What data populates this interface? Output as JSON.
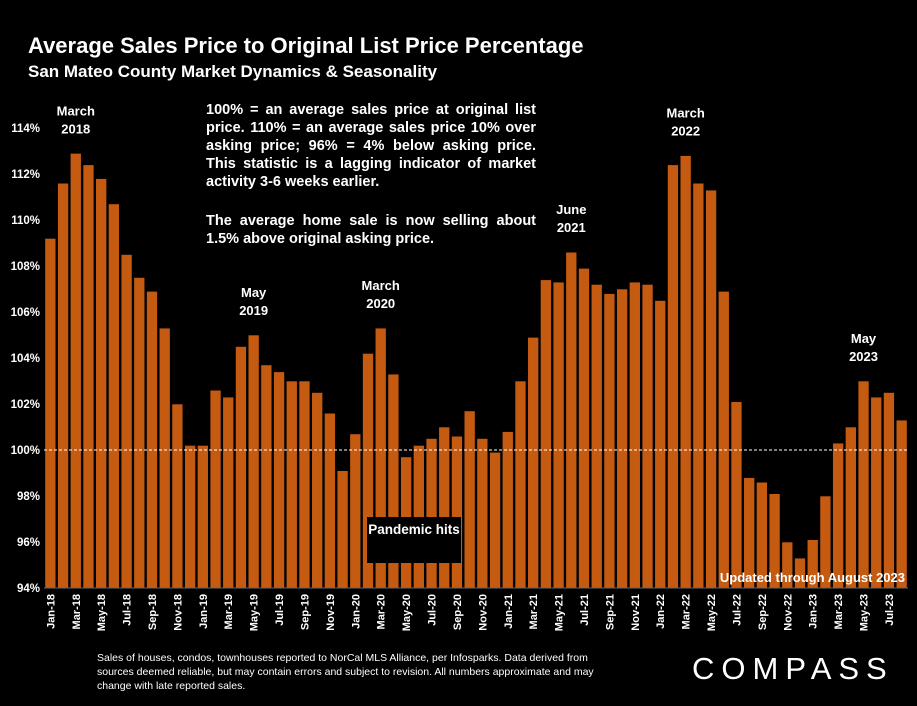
{
  "header": {
    "title": "Average Sales Price to Original List Price Percentage",
    "subtitle": "San Mateo County Market Dynamics & Seasonality"
  },
  "notes": {
    "definition": "100% = an average sales price at original list price. 110% = an average sales price 10% over asking price; 96% = 4% below asking price. This statistic is a lagging indicator of market activity 3-6 weeks earlier.",
    "current": "The average home sale is now selling about 1.5% above original asking price."
  },
  "pandemic_label": "Pandemic hits",
  "updated": "Updated through August 2023",
  "footnote": "Sales of houses, condos, townhouses reported to NorCal MLS Alliance, per Infosparks. Data derived from sources deemed reliable, but may contain errors and subject to revision. All numbers approximate and may change with late reported sales.",
  "brand": "COMPASS",
  "colors": {
    "background": "#000000",
    "bar": "#C55A11",
    "bar_outline": "#000000",
    "text": "#FFFFFF",
    "reference_line": "#FFFFFF"
  },
  "chart_data": {
    "type": "bar",
    "title": "Average Sales Price to Original List Price Percentage",
    "subtitle": "San Mateo County Market Dynamics & Seasonality",
    "ylim": [
      94,
      114
    ],
    "y_ticks": [
      "94%",
      "96%",
      "98%",
      "100%",
      "102%",
      "104%",
      "106%",
      "108%",
      "110%",
      "112%",
      "114%"
    ],
    "y_tick_values": [
      94,
      96,
      98,
      100,
      102,
      104,
      106,
      108,
      110,
      112,
      114
    ],
    "reference_line": 100,
    "grid": false,
    "categories": [
      "Jan-18",
      "Feb-18",
      "Mar-18",
      "Apr-18",
      "May-18",
      "Jun-18",
      "Jul-18",
      "Aug-18",
      "Sep-18",
      "Oct-18",
      "Nov-18",
      "Dec-18",
      "Jan-19",
      "Feb-19",
      "Mar-19",
      "Apr-19",
      "May-19",
      "Jun-19",
      "Jul-19",
      "Aug-19",
      "Sep-19",
      "Oct-19",
      "Nov-19",
      "Dec-19",
      "Jan-20",
      "Feb-20",
      "Mar-20",
      "Apr-20",
      "May-20",
      "Jun-20",
      "Jul-20",
      "Aug-20",
      "Sep-20",
      "Oct-20",
      "Nov-20",
      "Dec-20",
      "Jan-21",
      "Feb-21",
      "Mar-21",
      "Apr-21",
      "May-21",
      "Jun-21",
      "Jul-21",
      "Aug-21",
      "Sep-21",
      "Oct-21",
      "Nov-21",
      "Dec-21",
      "Jan-22",
      "Feb-22",
      "Mar-22",
      "Apr-22",
      "May-22",
      "Jun-22",
      "Jul-22",
      "Aug-22",
      "Sep-22",
      "Oct-22",
      "Nov-22",
      "Dec-22",
      "Jan-23",
      "Feb-23",
      "Mar-23",
      "Apr-23",
      "May-23",
      "Jun-23",
      "Jul-23",
      "Aug-23"
    ],
    "x_tick_labels": [
      "Jan-18",
      "",
      "Mar-18",
      "",
      "May-18",
      "",
      "Jul-18",
      "",
      "Sep-18",
      "",
      "Nov-18",
      "",
      "Jan-19",
      "",
      "Mar-19",
      "",
      "May-19",
      "",
      "Jul-19",
      "",
      "Sep-19",
      "",
      "Nov-19",
      "",
      "Jan-20",
      "",
      "Mar-20",
      "",
      "May-20",
      "",
      "Jul-20",
      "",
      "Sep-20",
      "",
      "Nov-20",
      "",
      "Jan-21",
      "",
      "Mar-21",
      "",
      "May-21",
      "",
      "Jul-21",
      "",
      "Sep-21",
      "",
      "Nov-21",
      "",
      "Jan-22",
      "",
      "Mar-22",
      "",
      "May-22",
      "",
      "Jul-22",
      "",
      "Sep-22",
      "",
      "Nov-22",
      "",
      "Jan-23",
      "",
      "Mar-23",
      "",
      "May-23",
      "",
      "Jul-23",
      ""
    ],
    "values": [
      109.2,
      111.6,
      112.9,
      112.4,
      111.8,
      110.7,
      108.5,
      107.5,
      106.9,
      105.3,
      102.0,
      100.2,
      100.2,
      102.6,
      102.3,
      104.5,
      105.0,
      103.7,
      103.4,
      103.0,
      103.0,
      102.5,
      101.6,
      99.1,
      100.7,
      104.2,
      105.3,
      103.3,
      99.7,
      100.2,
      100.5,
      101.0,
      100.6,
      101.7,
      100.5,
      99.9,
      100.8,
      103.0,
      104.9,
      107.4,
      107.3,
      108.6,
      107.9,
      107.2,
      106.8,
      107.0,
      107.3,
      107.2,
      106.5,
      112.4,
      112.8,
      111.6,
      111.3,
      106.9,
      102.1,
      98.8,
      98.6,
      98.1,
      96.0,
      95.3,
      96.1,
      98.0,
      100.3,
      101.0,
      103.0,
      102.3,
      102.5,
      101.3
    ],
    "annotations": [
      {
        "label": "March 2018",
        "category": "Mar-18"
      },
      {
        "label": "May 2019",
        "category": "May-19"
      },
      {
        "label": "March 2020",
        "category": "Mar-20"
      },
      {
        "label": "June 2021",
        "category": "Jun-21"
      },
      {
        "label": "March 2022",
        "category": "Mar-22"
      },
      {
        "label": "May 2023",
        "category": "May-23"
      }
    ]
  }
}
